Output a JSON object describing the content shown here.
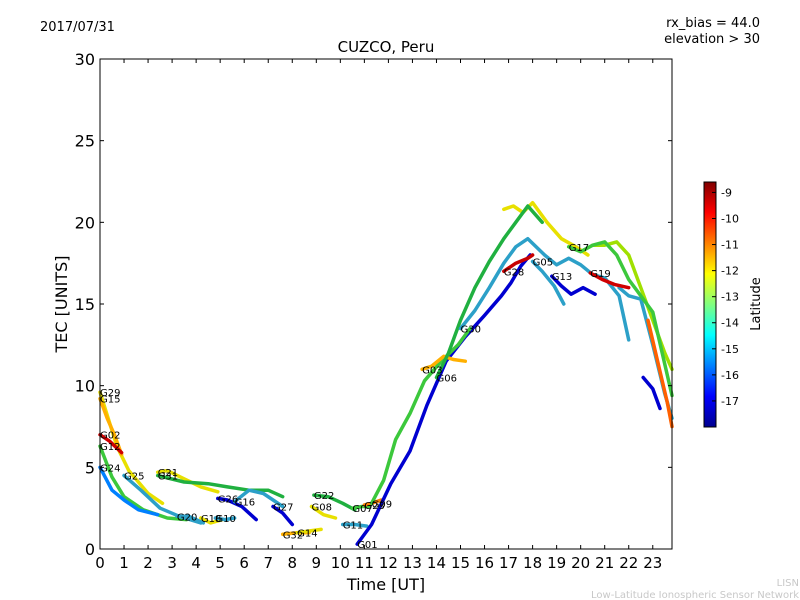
{
  "header": {
    "date": "2017/07/31",
    "rx_bias": "rx_bias = 44.0",
    "elevation": "elevation > 30"
  },
  "credit": {
    "line1": "LISN",
    "line2": "Low-Latitude Ionospheric Sensor Network"
  },
  "colorbar": {
    "label": "Latitude",
    "ticks": [
      "-9",
      "-10",
      "-11",
      "-12",
      "-13",
      "-14",
      "-15",
      "-16",
      "-17"
    ],
    "tick_values": [
      -9,
      -10,
      -11,
      -12,
      -13,
      -14,
      -15,
      -16,
      -17
    ],
    "range": [
      -18,
      -8.6
    ],
    "colors": [
      "#00008f",
      "#0000ff",
      "#0080ff",
      "#00ffff",
      "#80ff80",
      "#ffff00",
      "#ff8000",
      "#ff0000",
      "#800000"
    ]
  },
  "chart_data": {
    "type": "line",
    "title": "CUZCO, Peru",
    "xlabel": "Time [UT]",
    "ylabel": "TEC [UNITS]",
    "xlim": [
      0,
      23.8
    ],
    "ylim": [
      0,
      30
    ],
    "xticks": [
      0,
      1,
      2,
      3,
      4,
      5,
      6,
      7,
      8,
      9,
      10,
      11,
      12,
      13,
      14,
      15,
      16,
      17,
      18,
      19,
      20,
      21,
      22,
      23
    ],
    "yticks": [
      0,
      5,
      10,
      15,
      20,
      25,
      30
    ],
    "grid": false,
    "series": [
      {
        "name": "G29",
        "color": "#e8e000",
        "x": [
          0,
          0.3,
          0.7,
          1.2,
          2.0,
          2.6
        ],
        "y": [
          9.6,
          8.2,
          6.3,
          4.8,
          3.4,
          2.8
        ]
      },
      {
        "name": "G15",
        "color": "#ffb000",
        "x": [
          0,
          0.3,
          0.6,
          0.9
        ],
        "y": [
          9.2,
          8.0,
          7.0,
          5.8
        ]
      },
      {
        "name": "G02",
        "color": "#d00000",
        "x": [
          0,
          0.4,
          0.9
        ],
        "y": [
          7.0,
          6.6,
          5.9
        ]
      },
      {
        "name": "G12",
        "color": "#3cc83c",
        "x": [
          0,
          0.5,
          1.0,
          1.8,
          2.8,
          3.6
        ],
        "y": [
          6.3,
          4.4,
          3.2,
          2.4,
          1.9,
          1.8
        ]
      },
      {
        "name": "G24",
        "color": "#0080ff",
        "x": [
          0,
          0.5,
          1.0,
          1.6,
          2.4
        ],
        "y": [
          5.0,
          3.6,
          3.0,
          2.4,
          2.1
        ]
      },
      {
        "name": "G25",
        "color": "#2ca0c8",
        "x": [
          1.0,
          1.7,
          2.5,
          3.3,
          4.2
        ],
        "y": [
          4.5,
          3.6,
          2.5,
          2.0,
          1.6
        ]
      },
      {
        "name": "G21",
        "color": "#e8e000",
        "x": [
          2.4,
          2.8,
          3.5,
          4.2,
          4.9
        ],
        "y": [
          4.7,
          4.8,
          4.3,
          3.8,
          3.5
        ]
      },
      {
        "name": "G31",
        "color": "#20b040",
        "x": [
          2.4,
          3.5,
          4.5,
          5.3,
          6.2,
          7.0,
          7.6
        ],
        "y": [
          4.5,
          4.1,
          4.0,
          3.8,
          3.6,
          3.6,
          3.2
        ]
      },
      {
        "name": "G20",
        "color": "#2ca0c8",
        "x": [
          3.2,
          3.7,
          4.3
        ],
        "y": [
          2.0,
          2.0,
          1.6
        ]
      },
      {
        "name": "G18",
        "color": "#e8e000",
        "x": [
          4.2,
          4.6,
          5.1
        ],
        "y": [
          1.9,
          1.6,
          1.8
        ]
      },
      {
        "name": "G10",
        "color": "#2ca0c8",
        "x": [
          4.8,
          5.2,
          5.6
        ],
        "y": [
          1.9,
          1.8,
          1.9
        ]
      },
      {
        "name": "G26",
        "color": "#0000d0",
        "x": [
          4.9,
          5.3,
          5.9,
          6.5
        ],
        "y": [
          3.1,
          3.0,
          2.6,
          1.8
        ]
      },
      {
        "name": "G16",
        "color": "#2ca0c8",
        "x": [
          5.6,
          6.2,
          6.8,
          7.6
        ],
        "y": [
          2.9,
          3.6,
          3.4,
          2.6
        ]
      },
      {
        "name": "G27",
        "color": "#0000d0",
        "x": [
          7.2,
          7.6,
          8.0
        ],
        "y": [
          2.6,
          2.2,
          1.5
        ]
      },
      {
        "name": "G32",
        "color": "#ffb000",
        "x": [
          7.6,
          8.2,
          8.7
        ],
        "y": [
          0.9,
          1.0,
          1.0
        ]
      },
      {
        "name": "G14",
        "color": "#e8e000",
        "x": [
          8.2,
          8.7,
          9.2
        ],
        "y": [
          1.0,
          1.1,
          1.2
        ]
      },
      {
        "name": "G22",
        "color": "#20b040",
        "x": [
          8.9,
          9.5,
          10.1,
          10.6
        ],
        "y": [
          3.3,
          3.2,
          2.8,
          2.4
        ]
      },
      {
        "name": "G08",
        "color": "#e8e000",
        "x": [
          8.8,
          9.3,
          9.8
        ],
        "y": [
          2.6,
          2.1,
          1.9
        ]
      },
      {
        "name": "G11",
        "color": "#2ca0c8",
        "x": [
          10.1,
          10.6,
          11.1
        ],
        "y": [
          1.5,
          1.5,
          1.4
        ]
      },
      {
        "name": "G07",
        "color": "#3cc83c",
        "x": [
          10.5,
          10.9,
          11.2
        ],
        "y": [
          2.5,
          2.6,
          2.6
        ]
      },
      {
        "name": "G23",
        "color": "#ff8000",
        "x": [
          11.0,
          11.3,
          11.7
        ],
        "y": [
          2.7,
          2.8,
          3.0
        ]
      },
      {
        "name": "G01",
        "color": "#0000d0",
        "x": [
          10.7,
          11.3,
          12.1,
          12.9,
          13.6,
          14.4,
          15.2,
          16.0,
          16.7,
          17.1,
          17.5,
          17.9
        ],
        "y": [
          0.3,
          1.5,
          4.0,
          6.0,
          8.8,
          11.5,
          13.0,
          14.3,
          15.5,
          16.3,
          17.3,
          18.0
        ]
      },
      {
        "name": "G09",
        "color": "#3cc83c",
        "x": [
          11.3,
          11.8,
          12.3,
          12.9,
          13.5,
          14.2,
          14.9,
          15.4
        ],
        "y": [
          2.8,
          4.2,
          6.7,
          8.3,
          10.3,
          11.5,
          12.5,
          13.5
        ]
      },
      {
        "name": "G03",
        "color": "#ffb000",
        "x": [
          13.4,
          13.8,
          14.3,
          14.7,
          15.2
        ],
        "y": [
          11.0,
          11.2,
          11.8,
          11.6,
          11.5
        ]
      },
      {
        "name": "G06",
        "color": "#20b040",
        "x": [
          14.0,
          14.5,
          15.0,
          15.6,
          16.2,
          16.8,
          17.3,
          17.8,
          18.4
        ],
        "y": [
          10.5,
          12.0,
          14.0,
          16.0,
          17.6,
          19.0,
          20.0,
          21.0,
          20.0
        ]
      },
      {
        "name": "G30",
        "color": "#2ca0c8",
        "x": [
          15.0,
          15.6,
          16.2,
          16.8,
          17.3,
          17.8,
          18.5,
          19.0,
          19.5,
          20.0,
          20.5,
          21.0,
          21.6,
          22.0
        ],
        "y": [
          13.5,
          14.6,
          16.0,
          17.5,
          18.5,
          19.0,
          18.0,
          17.4,
          17.8,
          17.4,
          16.8,
          16.6,
          15.5,
          12.8
        ]
      },
      {
        "name": "G28",
        "color": "#c80000",
        "x": [
          16.8,
          17.3,
          17.8,
          18.0
        ],
        "y": [
          17.0,
          17.5,
          17.8,
          18.0
        ]
      },
      {
        "name": "G05",
        "color": "#2ca0c8",
        "x": [
          18.0,
          18.4,
          18.9,
          19.3
        ],
        "y": [
          17.6,
          17.0,
          16.1,
          15.0
        ]
      },
      {
        "name": "G13",
        "color": "#0000d0",
        "x": [
          18.8,
          19.2,
          19.6,
          20.1,
          20.6
        ],
        "y": [
          16.7,
          16.1,
          15.6,
          16.0,
          15.6
        ]
      },
      {
        "name": "G17",
        "color": "#3cc83c",
        "x": [
          19.5,
          20.0,
          20.5,
          21.0,
          21.5,
          22.0,
          22.5,
          23.0,
          23.8
        ],
        "y": [
          18.5,
          18.2,
          18.6,
          18.8,
          18.0,
          16.5,
          15.5,
          14.5,
          9.4
        ]
      },
      {
        "name": "G19",
        "color": "#d00000",
        "x": [
          20.4,
          20.9,
          21.4,
          22.0
        ],
        "y": [
          16.9,
          16.5,
          16.2,
          16.0
        ]
      }
    ],
    "extra_traces": [
      {
        "color": "#e8e000",
        "x": [
          16.8,
          17.2,
          17.6,
          18.0,
          18.6,
          19.2,
          19.8,
          20.3
        ],
        "y": [
          20.8,
          21.0,
          20.6,
          21.2,
          20.0,
          19.0,
          18.5,
          18.0
        ]
      },
      {
        "color": "#a0e000",
        "x": [
          20.5,
          21.0,
          21.5,
          22.0,
          22.5,
          23.0,
          23.5,
          23.8
        ],
        "y": [
          18.6,
          18.6,
          18.8,
          18.0,
          16.0,
          14.0,
          12.0,
          11.0
        ]
      },
      {
        "color": "#2ca0c8",
        "x": [
          21.6,
          22.0,
          22.5,
          23.0,
          23.5,
          23.8
        ],
        "y": [
          16.0,
          15.5,
          15.3,
          12.5,
          9.5,
          8.0
        ]
      },
      {
        "color": "#0000d0",
        "x": [
          22.6,
          23.0,
          23.3
        ],
        "y": [
          10.5,
          9.8,
          8.6
        ]
      },
      {
        "color": "#ff6000",
        "x": [
          22.8,
          23.2,
          23.6,
          23.8
        ],
        "y": [
          14.0,
          11.5,
          9.0,
          7.5
        ]
      }
    ]
  }
}
